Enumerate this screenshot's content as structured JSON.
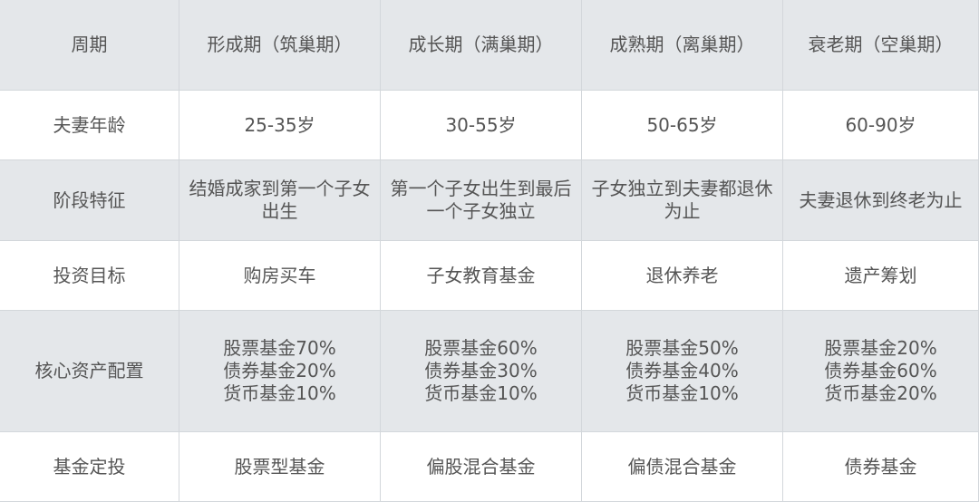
{
  "table": {
    "header": [
      "周期",
      "形成期（筑巢期）",
      "成长期（满巢期）",
      "成熟期（离巢期）",
      "衰老期（空巢期）"
    ],
    "rows": [
      [
        "夫妻年龄",
        "25-35岁",
        "30-55岁",
        "50-65岁",
        "60-90岁"
      ],
      [
        "阶段特征",
        "结婚成家到第一个子女出生",
        "第一个子女出生到最后一个子女独立",
        "子女独立到夫妻都退休为止",
        "夫妻退休到终老为止"
      ],
      [
        "投资目标",
        "购房买车",
        "子女教育基金",
        "退休养老",
        "遗产筹划"
      ],
      [
        "核心资产配置",
        [
          "股票基金70%",
          "债券基金20%",
          "货币基金10%"
        ],
        [
          "股票基金60%",
          "债券基金30%",
          "货币基金10%"
        ],
        [
          "股票基金50%",
          "债券基金40%",
          "货币基金10%"
        ],
        [
          "股票基金20%",
          "债券基金60%",
          "货币基金20%"
        ]
      ],
      [
        "基金定投",
        "股票型基金",
        "偏股混合基金",
        "偏债混合基金",
        "债券基金"
      ]
    ]
  }
}
